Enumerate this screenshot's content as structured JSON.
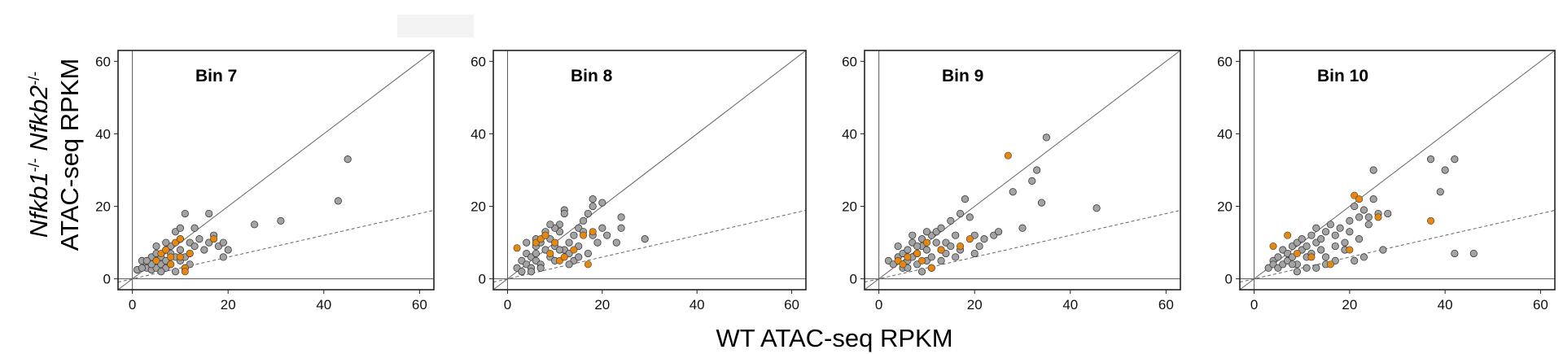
{
  "chart_data": {
    "type": "scatter",
    "xlabel": "WT ATAC-seq RPKM",
    "ylabel_lines": [
      [
        {
          "text": "Nfkb1",
          "italic": true
        },
        {
          "text": "-/-",
          "sup": true
        },
        {
          "text": " "
        },
        {
          "text": "Nfkb2",
          "italic": true
        },
        {
          "text": "-/-",
          "sup": true
        }
      ],
      [
        {
          "text": "ATAC-seq RPKM"
        }
      ]
    ],
    "xlim": [
      -3,
      63
    ],
    "ylim": [
      -3,
      63
    ],
    "ticks": [
      0,
      20,
      40,
      60
    ],
    "reference_lines": [
      {
        "name": "identity",
        "slope": 1,
        "style": "solid"
      },
      {
        "name": "lower",
        "slope": 0.3,
        "style": "dashed"
      }
    ],
    "colors": {
      "grey_point": "#a3a3a3",
      "highlight_point": "#e8870e",
      "outline": "#3a3a3a"
    },
    "panels": [
      {
        "title": "Bin 7",
        "grey": [
          [
            1,
            2.5
          ],
          [
            2,
            5
          ],
          [
            3,
            4
          ],
          [
            3,
            3
          ],
          [
            4,
            6
          ],
          [
            4,
            2.5
          ],
          [
            5,
            5
          ],
          [
            5,
            7
          ],
          [
            5,
            3
          ],
          [
            6,
            4
          ],
          [
            6,
            6
          ],
          [
            7,
            5
          ],
          [
            7,
            3
          ],
          [
            7,
            8
          ],
          [
            8,
            7
          ],
          [
            8,
            4
          ],
          [
            8,
            9
          ],
          [
            9,
            6
          ],
          [
            9,
            13
          ],
          [
            10,
            5
          ],
          [
            10,
            8
          ],
          [
            10,
            11
          ],
          [
            11,
            3
          ],
          [
            11,
            6
          ],
          [
            12,
            7
          ],
          [
            12,
            10
          ],
          [
            13,
            9
          ],
          [
            14,
            11
          ],
          [
            15,
            8
          ],
          [
            16,
            10
          ],
          [
            17,
            12
          ],
          [
            18,
            9
          ],
          [
            19,
            10
          ],
          [
            20,
            8
          ],
          [
            19,
            6
          ],
          [
            16,
            18
          ],
          [
            11,
            18
          ],
          [
            13,
            14
          ],
          [
            25.5,
            15
          ],
          [
            31,
            16
          ],
          [
            43,
            21.5
          ],
          [
            45,
            33
          ],
          [
            5,
            9
          ],
          [
            7,
            10
          ],
          [
            6,
            2
          ],
          [
            9,
            2
          ],
          [
            4,
            4
          ],
          [
            3,
            5
          ],
          [
            2,
            3
          ],
          [
            10,
            14
          ],
          [
            12,
            4
          ]
        ],
        "orange": [
          [
            5,
            5
          ],
          [
            6,
            7
          ],
          [
            7,
            8
          ],
          [
            8,
            4
          ],
          [
            9,
            10
          ],
          [
            10,
            6
          ],
          [
            11,
            3
          ],
          [
            12,
            7
          ],
          [
            10,
            11
          ],
          [
            11,
            2
          ],
          [
            8,
            6
          ],
          [
            17,
            11
          ]
        ]
      },
      {
        "title": "Bin 8",
        "grey": [
          [
            2,
            3
          ],
          [
            3,
            5
          ],
          [
            4,
            4
          ],
          [
            4,
            7
          ],
          [
            5,
            3
          ],
          [
            5,
            6
          ],
          [
            6,
            9
          ],
          [
            6,
            5
          ],
          [
            7,
            10
          ],
          [
            7,
            4
          ],
          [
            8,
            8
          ],
          [
            8,
            12
          ],
          [
            9,
            6
          ],
          [
            9,
            11
          ],
          [
            10,
            9
          ],
          [
            10,
            5
          ],
          [
            11,
            13
          ],
          [
            11,
            15
          ],
          [
            12,
            8
          ],
          [
            12,
            19
          ],
          [
            13,
            10
          ],
          [
            13,
            7
          ],
          [
            14,
            12
          ],
          [
            15,
            14
          ],
          [
            15,
            9
          ],
          [
            16,
            16
          ],
          [
            17,
            18
          ],
          [
            18,
            20
          ],
          [
            19,
            10
          ],
          [
            20,
            21
          ],
          [
            20,
            14
          ],
          [
            21,
            12
          ],
          [
            23,
            10
          ],
          [
            24,
            14
          ],
          [
            24,
            17
          ],
          [
            29,
            11
          ],
          [
            18,
            22
          ],
          [
            16,
            13
          ],
          [
            14,
            5
          ],
          [
            12,
            18
          ],
          [
            10,
            14
          ],
          [
            9,
            15
          ],
          [
            8,
            13
          ],
          [
            6,
            11
          ],
          [
            5,
            2
          ],
          [
            3,
            2
          ],
          [
            4,
            10
          ],
          [
            6,
            7
          ],
          [
            7,
            3
          ],
          [
            11,
            8
          ],
          [
            13,
            4
          ],
          [
            15,
            6
          ],
          [
            17,
            7
          ],
          [
            18,
            12
          ]
        ],
        "orange": [
          [
            2,
            8.5
          ],
          [
            6,
            10
          ],
          [
            7,
            11
          ],
          [
            8,
            12
          ],
          [
            9,
            7
          ],
          [
            10,
            10
          ],
          [
            11,
            5
          ],
          [
            12,
            6
          ],
          [
            14,
            8
          ],
          [
            16,
            12
          ],
          [
            17,
            4
          ],
          [
            18,
            13
          ]
        ]
      },
      {
        "title": "Bin 9",
        "grey": [
          [
            2,
            5
          ],
          [
            3,
            4
          ],
          [
            4,
            6
          ],
          [
            4,
            9
          ],
          [
            5,
            3
          ],
          [
            5,
            7
          ],
          [
            6,
            5
          ],
          [
            6,
            8
          ],
          [
            7,
            6
          ],
          [
            7,
            10
          ],
          [
            8,
            4
          ],
          [
            8,
            7
          ],
          [
            9,
            9
          ],
          [
            9,
            11
          ],
          [
            10,
            5
          ],
          [
            10,
            8
          ],
          [
            11,
            12
          ],
          [
            11,
            6
          ],
          [
            12,
            10
          ],
          [
            12,
            13
          ],
          [
            13,
            8
          ],
          [
            13,
            14
          ],
          [
            14,
            10
          ],
          [
            14,
            7
          ],
          [
            15,
            16
          ],
          [
            16,
            12
          ],
          [
            17,
            8
          ],
          [
            17,
            18
          ],
          [
            18,
            22
          ],
          [
            19,
            17
          ],
          [
            20,
            7
          ],
          [
            20,
            12
          ],
          [
            21,
            9
          ],
          [
            22,
            11
          ],
          [
            24,
            12
          ],
          [
            25,
            13
          ],
          [
            28,
            24
          ],
          [
            30,
            14
          ],
          [
            32,
            27
          ],
          [
            33,
            30
          ],
          [
            34,
            21
          ],
          [
            35,
            39
          ],
          [
            45.5,
            19.5
          ],
          [
            11,
            3
          ],
          [
            9,
            2
          ],
          [
            6,
            3
          ],
          [
            7,
            12
          ],
          [
            8,
            9
          ],
          [
            10,
            13
          ],
          [
            13,
            5
          ],
          [
            15,
            9
          ],
          [
            16,
            6
          ]
        ],
        "orange": [
          [
            4,
            5
          ],
          [
            5,
            4
          ],
          [
            6,
            6
          ],
          [
            8,
            7
          ],
          [
            9,
            5
          ],
          [
            10,
            10
          ],
          [
            11,
            3
          ],
          [
            13,
            8
          ],
          [
            17,
            9
          ],
          [
            19,
            11
          ],
          [
            27,
            34
          ]
        ]
      },
      {
        "title": "Bin 10",
        "grey": [
          [
            3,
            3
          ],
          [
            4,
            5
          ],
          [
            4,
            4
          ],
          [
            5,
            6
          ],
          [
            5,
            3
          ],
          [
            6,
            8
          ],
          [
            6,
            4
          ],
          [
            7,
            7
          ],
          [
            7,
            5
          ],
          [
            8,
            9
          ],
          [
            8,
            6
          ],
          [
            9,
            10
          ],
          [
            9,
            4
          ],
          [
            10,
            8
          ],
          [
            10,
            11
          ],
          [
            11,
            6
          ],
          [
            11,
            9
          ],
          [
            12,
            12
          ],
          [
            12,
            7
          ],
          [
            13,
            10
          ],
          [
            13,
            14
          ],
          [
            14,
            8
          ],
          [
            14,
            11
          ],
          [
            15,
            13
          ],
          [
            15,
            6
          ],
          [
            16,
            15
          ],
          [
            17,
            12
          ],
          [
            17,
            9
          ],
          [
            18,
            14
          ],
          [
            19,
            10
          ],
          [
            20,
            16
          ],
          [
            20,
            13
          ],
          [
            21,
            20
          ],
          [
            22,
            17
          ],
          [
            22,
            11
          ],
          [
            23,
            19
          ],
          [
            24,
            15
          ],
          [
            24,
            17
          ],
          [
            25,
            30
          ],
          [
            25,
            22
          ],
          [
            26,
            18
          ],
          [
            27,
            8
          ],
          [
            28,
            18
          ],
          [
            37,
            33
          ],
          [
            39,
            24
          ],
          [
            40,
            30
          ],
          [
            42,
            33
          ],
          [
            42,
            7
          ],
          [
            46,
            7
          ],
          [
            23,
            6
          ],
          [
            21,
            5
          ],
          [
            19,
            8
          ],
          [
            17,
            5
          ],
          [
            15,
            4
          ],
          [
            13,
            3
          ],
          [
            11,
            3
          ],
          [
            9,
            2
          ],
          [
            8,
            4
          ]
        ],
        "orange": [
          [
            4,
            9
          ],
          [
            7,
            12
          ],
          [
            9,
            7
          ],
          [
            12,
            6
          ],
          [
            16,
            4
          ],
          [
            20,
            8
          ],
          [
            21,
            23
          ],
          [
            22,
            22
          ],
          [
            26,
            17
          ],
          [
            37,
            16
          ]
        ]
      }
    ]
  }
}
